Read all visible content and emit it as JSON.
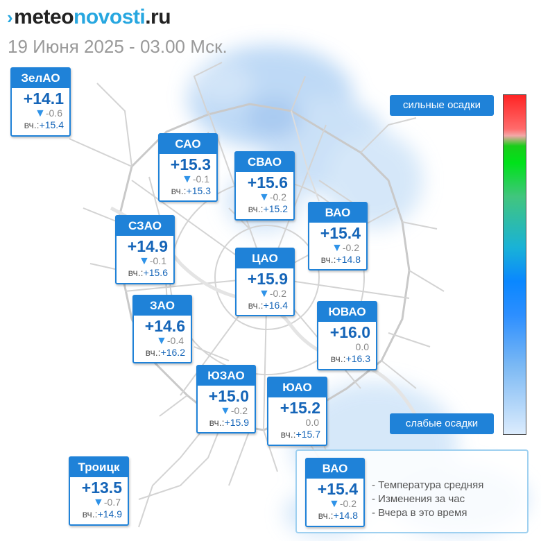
{
  "logo": {
    "mark": "›",
    "part1": "meteo",
    "part2": "novosti",
    "part3": ".ru"
  },
  "date": "19 Июня 2025 - 03.00 Мск.",
  "yday_prefix": "вч.:",
  "districts": [
    {
      "name": "ЗелАО",
      "temp": "+14.1",
      "change": "-0.6",
      "arrow": "▼",
      "yesterday": "+15.4"
    },
    {
      "name": "САО",
      "temp": "+15.3",
      "change": "-0.1",
      "arrow": "▼",
      "yesterday": "+15.3"
    },
    {
      "name": "СВАО",
      "temp": "+15.6",
      "change": "-0.2",
      "arrow": "▼",
      "yesterday": "+15.2"
    },
    {
      "name": "ВАО",
      "temp": "+15.4",
      "change": "-0.2",
      "arrow": "▼",
      "yesterday": "+14.8"
    },
    {
      "name": "СЗАО",
      "temp": "+14.9",
      "change": "-0.1",
      "arrow": "▼",
      "yesterday": "+15.6"
    },
    {
      "name": "ЦАО",
      "temp": "+15.9",
      "change": "-0.2",
      "arrow": "▼",
      "yesterday": "+16.4"
    },
    {
      "name": "ЗАО",
      "temp": "+14.6",
      "change": "-0.4",
      "arrow": "▼",
      "yesterday": "+16.2"
    },
    {
      "name": "ЮВАО",
      "temp": "+16.0",
      "change": "0.0",
      "arrow": "",
      "yesterday": "+16.3"
    },
    {
      "name": "ЮЗАО",
      "temp": "+15.0",
      "change": "-0.2",
      "arrow": "▼",
      "yesterday": "+15.9"
    },
    {
      "name": "ЮАО",
      "temp": "+15.2",
      "change": "0.0",
      "arrow": "",
      "yesterday": "+15.7"
    },
    {
      "name": "Троицк",
      "temp": "+13.5",
      "change": "-0.7",
      "arrow": "▼",
      "yesterday": "+14.9"
    }
  ],
  "precip_scale": {
    "top_label": "сильные осадки",
    "bottom_label": "слабые осадки",
    "colors": [
      "#ff2424",
      "#1acd1a",
      "#19b2d7",
      "#0a87ff",
      "#dcecfd"
    ]
  },
  "legend": {
    "sample": {
      "name": "ВАО",
      "temp": "+15.4",
      "change": "-0.2",
      "arrow": "▼",
      "yesterday": "+14.8"
    },
    "items": [
      "- Температура средняя",
      "- Изменения за час",
      "- Вчера в это время"
    ]
  },
  "colors": {
    "card_header": "#1f82d8",
    "temp_text": "#1565b8",
    "precip": "#b9d7f5"
  }
}
